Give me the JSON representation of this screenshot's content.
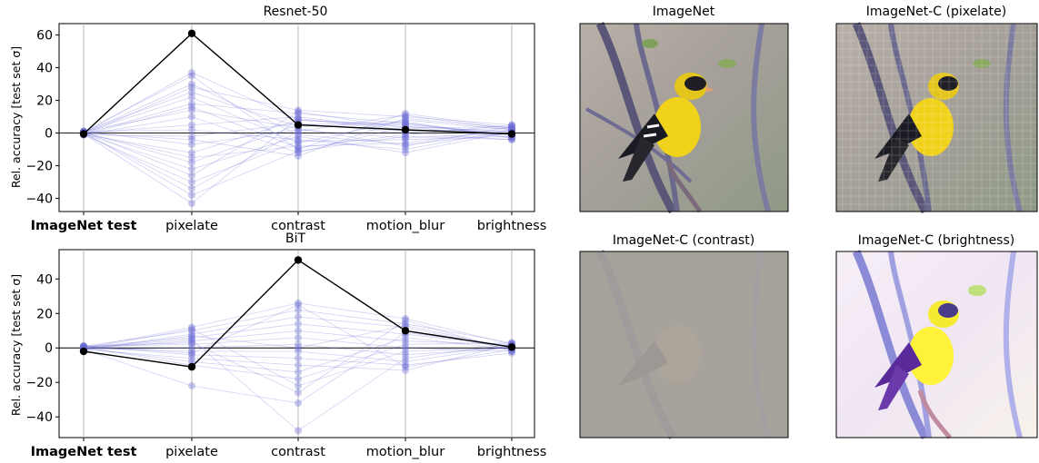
{
  "chart_data": [
    {
      "type": "line",
      "title": "Resnet-50",
      "ylabel": "Rel. accuracy [test set σ]",
      "categories": [
        "ImageNet test",
        "pixelate",
        "contrast",
        "motion_blur",
        "brightness"
      ],
      "bold_category": "ImageNet test",
      "ylim": [
        -48,
        67
      ],
      "yticks": [
        "60",
        "40",
        "20",
        "0",
        "−20",
        "−40"
      ],
      "ytick_values": [
        60,
        40,
        20,
        0,
        -20,
        -40
      ],
      "grid": "vertical",
      "reference_line": 0,
      "highlight_series": [
        {
          "values": [
            -0.5,
            61,
            5,
            2,
            -0.5
          ],
          "color": "#000000"
        }
      ],
      "background_series": [
        {
          "values": [
            0,
            37,
            8,
            4,
            1
          ]
        },
        {
          "values": [
            1,
            35,
            -10,
            12,
            3
          ]
        },
        {
          "values": [
            -1,
            28,
            14,
            10,
            5
          ]
        },
        {
          "values": [
            0.5,
            22,
            -6,
            8,
            2
          ]
        },
        {
          "values": [
            -0.5,
            18,
            12,
            6,
            -2
          ]
        },
        {
          "values": [
            1,
            14,
            3,
            -8,
            4
          ]
        },
        {
          "values": [
            -1,
            10,
            -12,
            4,
            -3
          ]
        },
        {
          "values": [
            0,
            5,
            10,
            2,
            1
          ]
        },
        {
          "values": [
            1,
            2,
            -4,
            -10,
            2
          ]
        },
        {
          "values": [
            -1,
            -2,
            6,
            0,
            -4
          ]
        },
        {
          "values": [
            0,
            -4,
            -14,
            9,
            3
          ]
        },
        {
          "values": [
            1,
            -7,
            2,
            -3,
            0
          ]
        },
        {
          "values": [
            -1,
            -12,
            8,
            5,
            -1
          ]
        },
        {
          "values": [
            0,
            -15,
            -8,
            -6,
            2
          ]
        },
        {
          "values": [
            0.5,
            -18,
            5,
            7,
            -3
          ]
        },
        {
          "values": [
            -0.5,
            -22,
            -2,
            -12,
            1
          ]
        },
        {
          "values": [
            1,
            -26,
            13,
            3,
            4
          ]
        },
        {
          "values": [
            -1,
            -30,
            -5,
            -4,
            -2
          ]
        },
        {
          "values": [
            0,
            -34,
            1,
            11,
            2
          ]
        },
        {
          "values": [
            0.5,
            -38,
            -11,
            -2,
            -4
          ]
        },
        {
          "values": [
            -0.5,
            -43,
            9,
            1,
            3
          ]
        },
        {
          "values": [
            0,
            30,
            -1,
            -7,
            0
          ]
        },
        {
          "values": [
            1,
            25,
            4,
            6,
            -1
          ]
        },
        {
          "values": [
            -1,
            16,
            -9,
            -1,
            5
          ]
        }
      ]
    },
    {
      "type": "line",
      "title": "BiT",
      "ylabel": "Rel. accuracy [test set σ]",
      "categories": [
        "ImageNet test",
        "pixelate",
        "contrast",
        "motion_blur",
        "brightness"
      ],
      "bold_category": "ImageNet test",
      "ylim": [
        -52,
        57
      ],
      "yticks": [
        "40",
        "20",
        "0",
        "−20",
        "−40"
      ],
      "ytick_values": [
        40,
        20,
        0,
        -20,
        -40
      ],
      "grid": "vertical",
      "reference_line": 0,
      "highlight_series": [
        {
          "values": [
            -2,
            -11,
            51,
            10,
            0.5
          ],
          "color": "#000000"
        }
      ],
      "background_series": [
        {
          "values": [
            0,
            12,
            26,
            17,
            2
          ]
        },
        {
          "values": [
            1,
            10,
            22,
            14,
            3
          ]
        },
        {
          "values": [
            -1,
            8,
            18,
            12,
            -1
          ]
        },
        {
          "values": [
            0.5,
            6,
            14,
            8,
            1
          ]
        },
        {
          "values": [
            -0.5,
            4,
            10,
            4,
            2
          ]
        },
        {
          "values": [
            1,
            2,
            6,
            0,
            -2
          ]
        },
        {
          "values": [
            -1,
            0,
            2,
            -4,
            0
          ]
        },
        {
          "values": [
            0,
            -2,
            -2,
            -8,
            1
          ]
        },
        {
          "values": [
            1,
            -4,
            -6,
            -10,
            -3
          ]
        },
        {
          "values": [
            -1,
            -6,
            -10,
            -13,
            2
          ]
        },
        {
          "values": [
            0,
            -8,
            -14,
            6,
            -1
          ]
        },
        {
          "values": [
            0.5,
            -10,
            -18,
            2,
            3
          ]
        },
        {
          "values": [
            -0.5,
            11,
            -22,
            -2,
            0
          ]
        },
        {
          "values": [
            1,
            3,
            -26,
            16,
            -2
          ]
        },
        {
          "values": [
            -1,
            -22,
            -32,
            9,
            1
          ]
        },
        {
          "values": [
            0,
            5,
            -48,
            -6,
            2
          ]
        },
        {
          "values": [
            1,
            -3,
            25,
            -11,
            -1
          ]
        },
        {
          "values": [
            -1,
            7,
            0,
            13,
            0
          ]
        }
      ]
    }
  ],
  "images": [
    {
      "title": "ImageNet"
    },
    {
      "title": "ImageNet-C (pixelate)"
    },
    {
      "title": "ImageNet-C (contrast)"
    },
    {
      "title": "ImageNet-C (brightness)"
    }
  ],
  "colors": {
    "background_series": "#6a6ad6",
    "highlight": "#000000",
    "grid": "#b0b0b0"
  }
}
